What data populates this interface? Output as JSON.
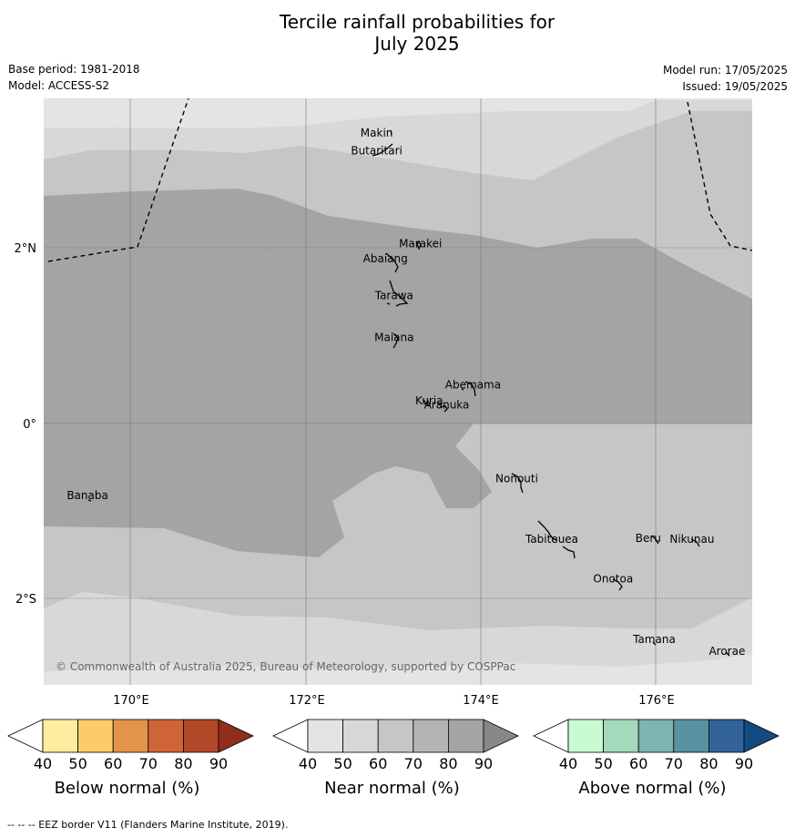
{
  "title": {
    "line1": "Tercile rainfall probabilities for",
    "line2": "July 2025"
  },
  "meta": {
    "base_period": "Base period: 1981-2018",
    "model": "Model: ACCESS-S2",
    "model_run": "Model run: 17/05/2025",
    "issued": "Issued: 19/05/2025"
  },
  "map": {
    "lat_labels": [
      "2°N",
      "0°",
      "2°S"
    ],
    "lon_labels": [
      "170°E",
      "172°E",
      "174°E",
      "176°E"
    ],
    "copyright": "© Commonwealth of Australia 2025, Bureau of Meteorology, supported by COSPPac",
    "colors": {
      "near_40": "#e4e4e4",
      "near_50": "#d8d8d8",
      "near_60": "#c6c6c6",
      "near_70": "#a4a4a4",
      "eez_border": "#000000"
    },
    "places": [
      {
        "name": "Makin",
        "lon": 172.8,
        "lat": 3.27
      },
      {
        "name": "Butaritari",
        "lon": 172.8,
        "lat": 3.07
      },
      {
        "name": "Marakei",
        "lon": 173.3,
        "lat": 2.01
      },
      {
        "name": "Abaiang",
        "lon": 172.9,
        "lat": 1.84
      },
      {
        "name": "Tarawa",
        "lon": 173.0,
        "lat": 1.42
      },
      {
        "name": "Maiana",
        "lon": 173.0,
        "lat": 0.94
      },
      {
        "name": "Abemama",
        "lon": 173.9,
        "lat": 0.4
      },
      {
        "name": "Kuria",
        "lon": 173.4,
        "lat": 0.22
      },
      {
        "name": "Aranuka",
        "lon": 173.6,
        "lat": 0.17
      },
      {
        "name": "Nonouti",
        "lon": 174.4,
        "lat": -0.67
      },
      {
        "name": "Banaba",
        "lon": 169.5,
        "lat": -0.86
      },
      {
        "name": "Beru",
        "lon": 175.9,
        "lat": -1.35
      },
      {
        "name": "Nikunau",
        "lon": 176.4,
        "lat": -1.36
      },
      {
        "name": "Tabiteuea",
        "lon": 174.8,
        "lat": -1.36
      },
      {
        "name": "Onotoa",
        "lon": 175.5,
        "lat": -1.81
      },
      {
        "name": "Tamana",
        "lon": 175.97,
        "lat": -2.5
      },
      {
        "name": "Arorae",
        "lon": 176.8,
        "lat": -2.64
      }
    ]
  },
  "legends": [
    {
      "id": "below",
      "title": "Below normal (%)",
      "ticks": [
        "40",
        "50",
        "60",
        "70",
        "80",
        "90"
      ],
      "colors": [
        "#ffffff",
        "#ffed9f",
        "#fecb67",
        "#e3944b",
        "#cf6536",
        "#b14827",
        "#902d1c"
      ]
    },
    {
      "id": "near",
      "title": "Near normal (%)",
      "ticks": [
        "40",
        "50",
        "60",
        "70",
        "80",
        "90"
      ],
      "colors": [
        "#ffffff",
        "#e4e4e4",
        "#d8d8d8",
        "#c6c6c6",
        "#b4b4b4",
        "#a4a4a4",
        "#888888"
      ]
    },
    {
      "id": "above",
      "title": "Above normal (%)",
      "ticks": [
        "40",
        "50",
        "60",
        "70",
        "80",
        "90"
      ],
      "colors": [
        "#ffffff",
        "#c9fbd3",
        "#a4d9bd",
        "#7cb5b0",
        "#5992a2",
        "#336499",
        "#154a80"
      ]
    }
  ],
  "footer": {
    "note": "--  --  -- EEZ border V11 (Flanders Marine Institute, 2019)."
  }
}
